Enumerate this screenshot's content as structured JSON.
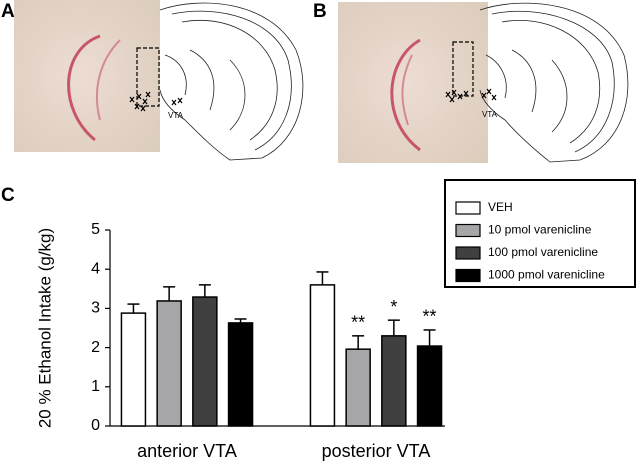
{
  "panels": [
    {
      "label": "A",
      "region": "VTA"
    },
    {
      "label": "B",
      "region": "VTA"
    },
    {
      "label": "C"
    }
  ],
  "chart_data": {
    "type": "bar",
    "y_label": "20 % Ethanol  Intake (g/kg)",
    "categories": [
      "anterior VTA",
      "posterior VTA"
    ],
    "series": [
      {
        "name": "VEH",
        "color": "#ffffff",
        "values": [
          2.88,
          3.6
        ],
        "errors": [
          0.23,
          0.33
        ],
        "annotations": [
          null,
          null
        ]
      },
      {
        "name": "10 pmol varenicline",
        "color": "#a6a6a8",
        "values": [
          3.19,
          1.96
        ],
        "errors": [
          0.36,
          0.34
        ],
        "annotations": [
          null,
          "**"
        ]
      },
      {
        "name": "100 pmol varenicline",
        "color": "#404040",
        "values": [
          3.29,
          2.3
        ],
        "errors": [
          0.31,
          0.4
        ],
        "annotations": [
          null,
          "*"
        ]
      },
      {
        "name": "1000 pmol varenicline",
        "color": "#000000",
        "values": [
          2.63,
          2.04
        ],
        "errors": [
          0.1,
          0.41
        ],
        "annotations": [
          null,
          "**"
        ]
      }
    ],
    "ylim": [
      0,
      5
    ],
    "yticks": [
      0,
      1,
      2,
      3,
      4,
      5
    ],
    "grid": false,
    "legend": "top-right"
  }
}
